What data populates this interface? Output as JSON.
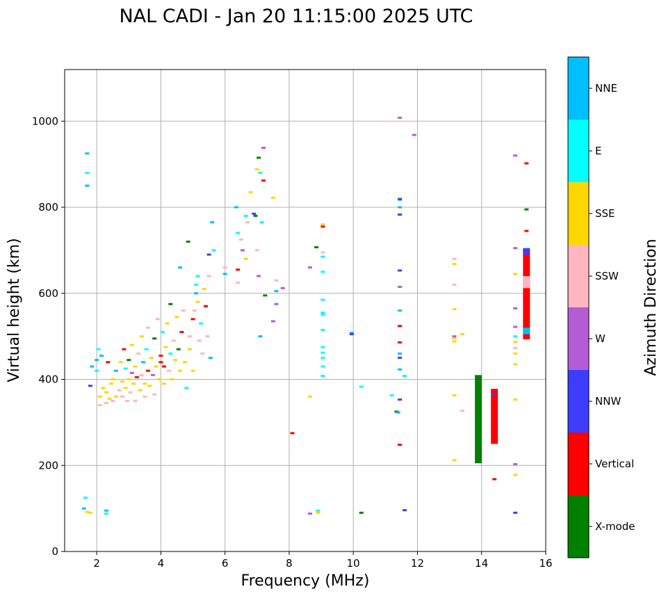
{
  "chart_data": {
    "type": "scatter",
    "title": "NAL CADI - Jan 20 11:15:00 2025 UTC",
    "xlabel": "Frequency (MHz)",
    "ylabel": "Virtual height (km)",
    "xlim": [
      1,
      16
    ],
    "ylim": [
      0,
      1120
    ],
    "xticks": [
      2,
      4,
      6,
      8,
      10,
      12,
      14,
      16
    ],
    "yticks": [
      0,
      200,
      400,
      600,
      800,
      1000
    ],
    "grid": true,
    "colorbar": {
      "label": "Azimuth Direction",
      "categories": [
        {
          "name": "X-mode",
          "color": "#008000"
        },
        {
          "name": "Vertical",
          "color": "#ff0000"
        },
        {
          "name": "NNW",
          "color": "#3d3dff"
        },
        {
          "name": "W",
          "color": "#b35cd6"
        },
        {
          "name": "SSW",
          "color": "#ffb6c1"
        },
        {
          "name": "SSE",
          "color": "#ffd700"
        },
        {
          "name": "E",
          "color": "#00ffff"
        },
        {
          "name": "NNE",
          "color": "#00bfff"
        }
      ]
    },
    "stripes": [
      {
        "f": 13.9,
        "h0": 205,
        "h1": 410,
        "dir": "X-mode"
      },
      {
        "f": 14.4,
        "h0": 250,
        "h1": 378,
        "dir": "Vertical"
      },
      {
        "f": 15.4,
        "h0": 493,
        "h1": 700,
        "dir": "Vertical"
      },
      {
        "f": 15.4,
        "h0": 505,
        "h1": 520,
        "dir": "NNE"
      },
      {
        "f": 15.4,
        "h0": 612,
        "h1": 640,
        "dir": "SSW"
      },
      {
        "f": 15.4,
        "h0": 690,
        "h1": 705,
        "dir": "NNW"
      }
    ],
    "points": [
      {
        "f": 1.6,
        "h": 100,
        "dir": "NNE"
      },
      {
        "f": 1.65,
        "h": 125,
        "dir": "E"
      },
      {
        "f": 1.7,
        "h": 92,
        "dir": "SSE"
      },
      {
        "f": 1.8,
        "h": 90,
        "dir": "SSE"
      },
      {
        "f": 2.3,
        "h": 95,
        "dir": "NNE"
      },
      {
        "f": 2.3,
        "h": 88,
        "dir": "E"
      },
      {
        "f": 1.7,
        "h": 925,
        "dir": "NNE"
      },
      {
        "f": 1.7,
        "h": 880,
        "dir": "E"
      },
      {
        "f": 1.7,
        "h": 850,
        "dir": "NNE"
      },
      {
        "f": 1.8,
        "h": 385,
        "dir": "NNW"
      },
      {
        "f": 1.85,
        "h": 430,
        "dir": "NNE"
      },
      {
        "f": 2.0,
        "h": 445,
        "dir": "NNE"
      },
      {
        "f": 2.0,
        "h": 420,
        "dir": "E"
      },
      {
        "f": 2.05,
        "h": 470,
        "dir": "E"
      },
      {
        "f": 2.1,
        "h": 340,
        "dir": "SSW"
      },
      {
        "f": 2.1,
        "h": 360,
        "dir": "SSE"
      },
      {
        "f": 2.15,
        "h": 455,
        "dir": "NNE"
      },
      {
        "f": 2.2,
        "h": 380,
        "dir": "SSE"
      },
      {
        "f": 2.3,
        "h": 345,
        "dir": "SSW"
      },
      {
        "f": 2.3,
        "h": 370,
        "dir": "SSE"
      },
      {
        "f": 2.35,
        "h": 440,
        "dir": "Vertical"
      },
      {
        "f": 2.4,
        "h": 355,
        "dir": "SSE"
      },
      {
        "f": 2.45,
        "h": 390,
        "dir": "SSE"
      },
      {
        "f": 2.5,
        "h": 350,
        "dir": "SSW"
      },
      {
        "f": 2.5,
        "h": 400,
        "dir": "SSE"
      },
      {
        "f": 2.6,
        "h": 360,
        "dir": "SSE"
      },
      {
        "f": 2.6,
        "h": 420,
        "dir": "NNE"
      },
      {
        "f": 2.7,
        "h": 375,
        "dir": "SSW"
      },
      {
        "f": 2.75,
        "h": 440,
        "dir": "SSE"
      },
      {
        "f": 2.8,
        "h": 360,
        "dir": "SSW"
      },
      {
        "f": 2.8,
        "h": 395,
        "dir": "SSE"
      },
      {
        "f": 2.85,
        "h": 470,
        "dir": "Vertical"
      },
      {
        "f": 2.9,
        "h": 380,
        "dir": "SSE"
      },
      {
        "f": 2.9,
        "h": 425,
        "dir": "E"
      },
      {
        "f": 2.95,
        "h": 350,
        "dir": "SSW"
      },
      {
        "f": 3.0,
        "h": 400,
        "dir": "SSE"
      },
      {
        "f": 3.0,
        "h": 445,
        "dir": "X-mode"
      },
      {
        "f": 3.05,
        "h": 370,
        "dir": "SSW"
      },
      {
        "f": 3.1,
        "h": 415,
        "dir": "W"
      },
      {
        "f": 3.1,
        "h": 480,
        "dir": "SSE"
      },
      {
        "f": 3.15,
        "h": 390,
        "dir": "SSE"
      },
      {
        "f": 3.2,
        "h": 350,
        "dir": "SSW"
      },
      {
        "f": 3.2,
        "h": 430,
        "dir": "SSE"
      },
      {
        "f": 3.25,
        "h": 405,
        "dir": "Vertical"
      },
      {
        "f": 3.3,
        "h": 460,
        "dir": "SSW"
      },
      {
        "f": 3.35,
        "h": 375,
        "dir": "SSE"
      },
      {
        "f": 3.4,
        "h": 410,
        "dir": "SSW"
      },
      {
        "f": 3.4,
        "h": 500,
        "dir": "SSE"
      },
      {
        "f": 3.45,
        "h": 440,
        "dir": "NNE"
      },
      {
        "f": 3.5,
        "h": 390,
        "dir": "SSE"
      },
      {
        "f": 3.5,
        "h": 360,
        "dir": "SSW"
      },
      {
        "f": 3.55,
        "h": 470,
        "dir": "E"
      },
      {
        "f": 3.6,
        "h": 420,
        "dir": "Vertical"
      },
      {
        "f": 3.6,
        "h": 520,
        "dir": "SSW"
      },
      {
        "f": 3.65,
        "h": 385,
        "dir": "SSE"
      },
      {
        "f": 3.7,
        "h": 450,
        "dir": "SSE"
      },
      {
        "f": 3.75,
        "h": 410,
        "dir": "W"
      },
      {
        "f": 3.8,
        "h": 495,
        "dir": "X-mode"
      },
      {
        "f": 3.8,
        "h": 365,
        "dir": "SSW"
      },
      {
        "f": 3.85,
        "h": 430,
        "dir": "SSE"
      },
      {
        "f": 3.9,
        "h": 540,
        "dir": "SSW"
      },
      {
        "f": 3.95,
        "h": 400,
        "dir": "SSE"
      },
      {
        "f": 4.0,
        "h": 455,
        "dir": "Vertical"
      },
      {
        "f": 4.0,
        "h": 440,
        "dir": "Vertical"
      },
      {
        "f": 4.05,
        "h": 510,
        "dir": "E"
      },
      {
        "f": 4.1,
        "h": 430,
        "dir": "Vertical"
      },
      {
        "f": 4.1,
        "h": 390,
        "dir": "SSE"
      },
      {
        "f": 4.15,
        "h": 475,
        "dir": "SSE"
      },
      {
        "f": 4.2,
        "h": 530,
        "dir": "SSE"
      },
      {
        "f": 4.25,
        "h": 420,
        "dir": "SSW"
      },
      {
        "f": 4.3,
        "h": 460,
        "dir": "E"
      },
      {
        "f": 4.3,
        "h": 575,
        "dir": "X-mode"
      },
      {
        "f": 4.35,
        "h": 400,
        "dir": "SSE"
      },
      {
        "f": 4.4,
        "h": 490,
        "dir": "SSW"
      },
      {
        "f": 4.45,
        "h": 445,
        "dir": "SSE"
      },
      {
        "f": 4.5,
        "h": 545,
        "dir": "SSE"
      },
      {
        "f": 4.55,
        "h": 470,
        "dir": "X-mode"
      },
      {
        "f": 4.6,
        "h": 420,
        "dir": "SSE"
      },
      {
        "f": 4.6,
        "h": 660,
        "dir": "NNE"
      },
      {
        "f": 4.65,
        "h": 510,
        "dir": "Vertical"
      },
      {
        "f": 4.7,
        "h": 560,
        "dir": "SSW"
      },
      {
        "f": 4.75,
        "h": 440,
        "dir": "SSE"
      },
      {
        "f": 4.8,
        "h": 380,
        "dir": "E"
      },
      {
        "f": 4.85,
        "h": 720,
        "dir": "X-mode"
      },
      {
        "f": 4.9,
        "h": 500,
        "dir": "SSW"
      },
      {
        "f": 4.9,
        "h": 470,
        "dir": "SSE"
      },
      {
        "f": 5.0,
        "h": 540,
        "dir": "Vertical"
      },
      {
        "f": 5.0,
        "h": 420,
        "dir": "SSE"
      },
      {
        "f": 5.05,
        "h": 560,
        "dir": "SSW"
      },
      {
        "f": 5.1,
        "h": 600,
        "dir": "NNE"
      },
      {
        "f": 5.1,
        "h": 620,
        "dir": "E"
      },
      {
        "f": 5.15,
        "h": 580,
        "dir": "SSE"
      },
      {
        "f": 5.15,
        "h": 640,
        "dir": "E"
      },
      {
        "f": 5.2,
        "h": 490,
        "dir": "SSW"
      },
      {
        "f": 5.25,
        "h": 530,
        "dir": "E"
      },
      {
        "f": 5.3,
        "h": 460,
        "dir": "SSW"
      },
      {
        "f": 5.35,
        "h": 610,
        "dir": "SSE"
      },
      {
        "f": 5.4,
        "h": 570,
        "dir": "Vertical"
      },
      {
        "f": 5.45,
        "h": 500,
        "dir": "SSW"
      },
      {
        "f": 5.5,
        "h": 640,
        "dir": "SSW"
      },
      {
        "f": 5.5,
        "h": 690,
        "dir": "NNW"
      },
      {
        "f": 5.55,
        "h": 450,
        "dir": "NNE"
      },
      {
        "f": 5.6,
        "h": 765,
        "dir": "NNE"
      },
      {
        "f": 5.65,
        "h": 700,
        "dir": "E"
      },
      {
        "f": 6.0,
        "h": 660,
        "dir": "SSW"
      },
      {
        "f": 6.0,
        "h": 645,
        "dir": "NNE"
      },
      {
        "f": 6.35,
        "h": 800,
        "dir": "NNE"
      },
      {
        "f": 6.4,
        "h": 740,
        "dir": "E"
      },
      {
        "f": 6.4,
        "h": 655,
        "dir": "Vertical"
      },
      {
        "f": 6.4,
        "h": 625,
        "dir": "SSW"
      },
      {
        "f": 6.5,
        "h": 725,
        "dir": "SSW"
      },
      {
        "f": 6.55,
        "h": 700,
        "dir": "W"
      },
      {
        "f": 6.65,
        "h": 680,
        "dir": "SSE"
      },
      {
        "f": 6.65,
        "h": 780,
        "dir": "E"
      },
      {
        "f": 6.7,
        "h": 765,
        "dir": "SSW"
      },
      {
        "f": 6.8,
        "h": 835,
        "dir": "SSE"
      },
      {
        "f": 6.9,
        "h": 785,
        "dir": "NNW"
      },
      {
        "f": 6.95,
        "h": 780,
        "dir": "X-mode"
      },
      {
        "f": 7.0,
        "h": 700,
        "dir": "SSW"
      },
      {
        "f": 7.0,
        "h": 888,
        "dir": "SSE"
      },
      {
        "f": 7.05,
        "h": 640,
        "dir": "W"
      },
      {
        "f": 7.1,
        "h": 500,
        "dir": "NNE"
      },
      {
        "f": 7.05,
        "h": 915,
        "dir": "X-mode"
      },
      {
        "f": 7.1,
        "h": 880,
        "dir": "E"
      },
      {
        "f": 7.15,
        "h": 765,
        "dir": "E"
      },
      {
        "f": 7.2,
        "h": 862,
        "dir": "Vertical"
      },
      {
        "f": 7.2,
        "h": 938,
        "dir": "W"
      },
      {
        "f": 7.25,
        "h": 595,
        "dir": "X-mode"
      },
      {
        "f": 7.5,
        "h": 822,
        "dir": "SSE"
      },
      {
        "f": 7.5,
        "h": 535,
        "dir": "W"
      },
      {
        "f": 7.6,
        "h": 605,
        "dir": "NNE"
      },
      {
        "f": 7.6,
        "h": 575,
        "dir": "W"
      },
      {
        "f": 7.6,
        "h": 630,
        "dir": "SSW"
      },
      {
        "f": 7.8,
        "h": 612,
        "dir": "W"
      },
      {
        "f": 8.1,
        "h": 275,
        "dir": "Vertical"
      },
      {
        "f": 8.65,
        "h": 360,
        "dir": "SSE"
      },
      {
        "f": 8.65,
        "h": 88,
        "dir": "W"
      },
      {
        "f": 8.65,
        "h": 660,
        "dir": "W"
      },
      {
        "f": 8.85,
        "h": 707,
        "dir": "X-mode"
      },
      {
        "f": 8.9,
        "h": 90,
        "dir": "SSE"
      },
      {
        "f": 8.9,
        "h": 95,
        "dir": "E"
      },
      {
        "f": 9.05,
        "h": 760,
        "dir": "SSE"
      },
      {
        "f": 9.05,
        "h": 755,
        "dir": "Vertical"
      },
      {
        "f": 9.05,
        "h": 695,
        "dir": "SSW"
      },
      {
        "f": 9.05,
        "h": 685,
        "dir": "E"
      },
      {
        "f": 9.05,
        "h": 650,
        "dir": "E"
      },
      {
        "f": 9.05,
        "h": 585,
        "dir": "E"
      },
      {
        "f": 9.05,
        "h": 555,
        "dir": "E"
      },
      {
        "f": 9.05,
        "h": 550,
        "dir": "E"
      },
      {
        "f": 9.05,
        "h": 515,
        "dir": "E"
      },
      {
        "f": 9.05,
        "h": 475,
        "dir": "E"
      },
      {
        "f": 9.05,
        "h": 462,
        "dir": "E"
      },
      {
        "f": 9.05,
        "h": 450,
        "dir": "E"
      },
      {
        "f": 9.05,
        "h": 430,
        "dir": "E"
      },
      {
        "f": 9.05,
        "h": 408,
        "dir": "E"
      },
      {
        "f": 9.95,
        "h": 508,
        "dir": "NNE"
      },
      {
        "f": 9.95,
        "h": 505,
        "dir": "NNW"
      },
      {
        "f": 10.25,
        "h": 383,
        "dir": "E"
      },
      {
        "f": 10.25,
        "h": 90,
        "dir": "X-mode"
      },
      {
        "f": 11.2,
        "h": 363,
        "dir": "E"
      },
      {
        "f": 11.35,
        "h": 325,
        "dir": "X-mode"
      },
      {
        "f": 11.4,
        "h": 323,
        "dir": "NNE"
      },
      {
        "f": 11.45,
        "h": 1008,
        "dir": "W"
      },
      {
        "f": 11.45,
        "h": 820,
        "dir": "NNE"
      },
      {
        "f": 11.45,
        "h": 818,
        "dir": "NNW"
      },
      {
        "f": 11.45,
        "h": 800,
        "dir": "NNE"
      },
      {
        "f": 11.45,
        "h": 783,
        "dir": "NNW"
      },
      {
        "f": 11.45,
        "h": 653,
        "dir": "NNW"
      },
      {
        "f": 11.45,
        "h": 615,
        "dir": "W"
      },
      {
        "f": 11.45,
        "h": 560,
        "dir": "NNE"
      },
      {
        "f": 11.45,
        "h": 524,
        "dir": "Vertical"
      },
      {
        "f": 11.45,
        "h": 486,
        "dir": "Vertical"
      },
      {
        "f": 11.45,
        "h": 460,
        "dir": "NNE"
      },
      {
        "f": 11.45,
        "h": 450,
        "dir": "NNW"
      },
      {
        "f": 11.45,
        "h": 423,
        "dir": "NNE"
      },
      {
        "f": 11.45,
        "h": 353,
        "dir": "NNW"
      },
      {
        "f": 11.45,
        "h": 248,
        "dir": "Vertical"
      },
      {
        "f": 11.6,
        "h": 408,
        "dir": "E"
      },
      {
        "f": 11.6,
        "h": 96,
        "dir": "NNW"
      },
      {
        "f": 11.9,
        "h": 968,
        "dir": "W"
      },
      {
        "f": 13.15,
        "h": 680,
        "dir": "SSW"
      },
      {
        "f": 13.15,
        "h": 668,
        "dir": "SSE"
      },
      {
        "f": 13.15,
        "h": 620,
        "dir": "SSW"
      },
      {
        "f": 13.15,
        "h": 563,
        "dir": "SSE"
      },
      {
        "f": 13.15,
        "h": 500,
        "dir": "W"
      },
      {
        "f": 13.15,
        "h": 495,
        "dir": "SSE"
      },
      {
        "f": 13.15,
        "h": 488,
        "dir": "SSE"
      },
      {
        "f": 13.15,
        "h": 363,
        "dir": "SSE"
      },
      {
        "f": 13.15,
        "h": 212,
        "dir": "SSE"
      },
      {
        "f": 13.4,
        "h": 505,
        "dir": "SSE"
      },
      {
        "f": 13.4,
        "h": 327,
        "dir": "SSW"
      },
      {
        "f": 14.4,
        "h": 168,
        "dir": "Vertical"
      },
      {
        "f": 14.4,
        "h": 365,
        "dir": "NNW"
      },
      {
        "f": 15.05,
        "h": 920,
        "dir": "W"
      },
      {
        "f": 15.05,
        "h": 705,
        "dir": "W"
      },
      {
        "f": 15.05,
        "h": 645,
        "dir": "SSE"
      },
      {
        "f": 15.05,
        "h": 565,
        "dir": "W"
      },
      {
        "f": 15.05,
        "h": 522,
        "dir": "W"
      },
      {
        "f": 15.05,
        "h": 500,
        "dir": "E"
      },
      {
        "f": 15.05,
        "h": 487,
        "dir": "SSE"
      },
      {
        "f": 15.05,
        "h": 473,
        "dir": "SSW"
      },
      {
        "f": 15.05,
        "h": 460,
        "dir": "SSE"
      },
      {
        "f": 15.05,
        "h": 435,
        "dir": "SSE"
      },
      {
        "f": 15.05,
        "h": 353,
        "dir": "SSE"
      },
      {
        "f": 15.05,
        "h": 203,
        "dir": "W"
      },
      {
        "f": 15.05,
        "h": 178,
        "dir": "SSE"
      },
      {
        "f": 15.05,
        "h": 90,
        "dir": "NNW"
      },
      {
        "f": 15.4,
        "h": 902,
        "dir": "Vertical"
      },
      {
        "f": 15.4,
        "h": 795,
        "dir": "X-mode"
      },
      {
        "f": 15.4,
        "h": 745,
        "dir": "Vertical"
      }
    ]
  }
}
